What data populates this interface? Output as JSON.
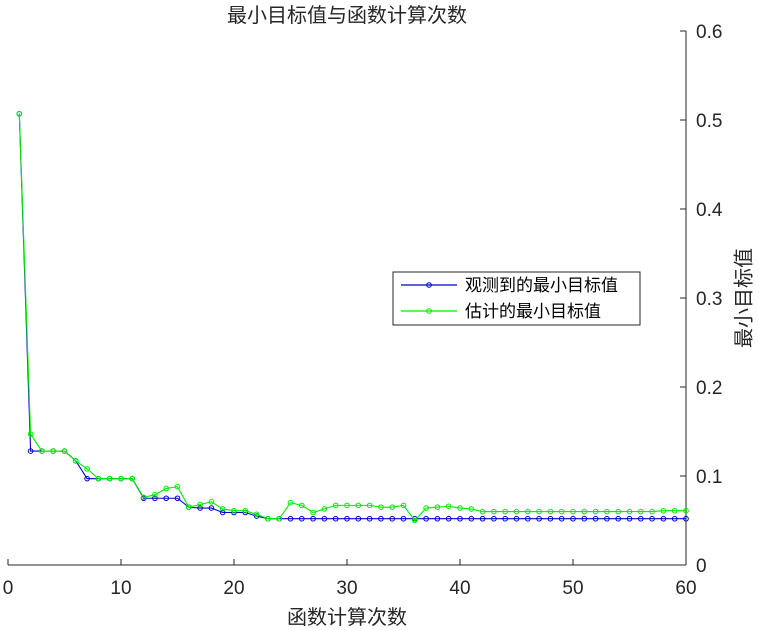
{
  "chart_data": {
    "type": "line",
    "title": "最小目标值与函数计算次数",
    "xlabel": "函数计算次数",
    "ylabel": "最小目标值",
    "xlim": [
      0,
      60
    ],
    "ylim": [
      0,
      0.6
    ],
    "xticks": [
      0,
      10,
      20,
      30,
      40,
      50,
      60
    ],
    "yticks": [
      0,
      0.1,
      0.2,
      0.3,
      0.4,
      0.5,
      0.6
    ],
    "y_axis_side": "right",
    "grid": false,
    "legend_position": "right-middle",
    "x": [
      1,
      2,
      3,
      4,
      5,
      6,
      7,
      8,
      9,
      10,
      11,
      12,
      13,
      14,
      15,
      16,
      17,
      18,
      19,
      20,
      21,
      22,
      23,
      24,
      25,
      26,
      27,
      28,
      29,
      30,
      31,
      32,
      33,
      34,
      35,
      36,
      37,
      38,
      39,
      40,
      41,
      42,
      43,
      44,
      45,
      46,
      47,
      48,
      49,
      50,
      51,
      52,
      53,
      54,
      55,
      56,
      57,
      58,
      59,
      60
    ],
    "series": [
      {
        "name": "观测到的最小目标值",
        "color": "#0000cc",
        "values": [
          0.507,
          0.128,
          0.128,
          0.128,
          0.128,
          0.117,
          0.097,
          0.097,
          0.097,
          0.097,
          0.097,
          0.075,
          0.075,
          0.075,
          0.075,
          0.065,
          0.064,
          0.064,
          0.059,
          0.059,
          0.059,
          0.055,
          0.052,
          0.052,
          0.052,
          0.052,
          0.052,
          0.052,
          0.052,
          0.052,
          0.052,
          0.052,
          0.052,
          0.052,
          0.052,
          0.052,
          0.052,
          0.052,
          0.052,
          0.052,
          0.052,
          0.052,
          0.052,
          0.052,
          0.052,
          0.052,
          0.052,
          0.052,
          0.052,
          0.052,
          0.052,
          0.052,
          0.052,
          0.052,
          0.052,
          0.052,
          0.052,
          0.052,
          0.052,
          0.052
        ]
      },
      {
        "name": "估计的最小目标值",
        "color": "#00ee00",
        "values": [
          0.507,
          0.147,
          0.128,
          0.128,
          0.128,
          0.117,
          0.108,
          0.097,
          0.097,
          0.097,
          0.097,
          0.076,
          0.079,
          0.086,
          0.088,
          0.065,
          0.068,
          0.071,
          0.063,
          0.061,
          0.061,
          0.057,
          0.052,
          0.052,
          0.07,
          0.067,
          0.059,
          0.063,
          0.067,
          0.067,
          0.067,
          0.067,
          0.065,
          0.065,
          0.067,
          0.05,
          0.064,
          0.065,
          0.066,
          0.064,
          0.063,
          0.06,
          0.06,
          0.06,
          0.06,
          0.06,
          0.06,
          0.06,
          0.06,
          0.06,
          0.06,
          0.06,
          0.06,
          0.06,
          0.06,
          0.06,
          0.06,
          0.061,
          0.061,
          0.061
        ]
      }
    ]
  }
}
